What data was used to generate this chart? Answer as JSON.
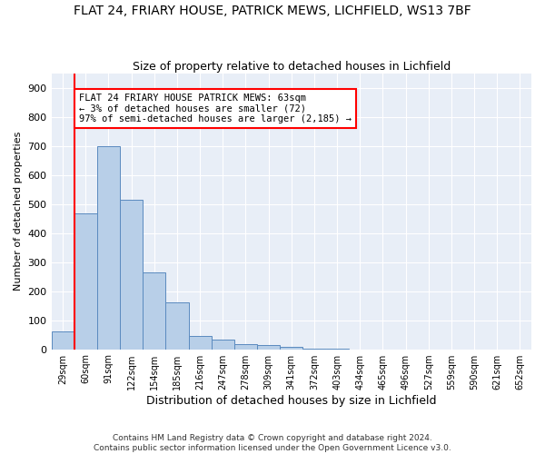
{
  "title": "FLAT 24, FRIARY HOUSE, PATRICK MEWS, LICHFIELD, WS13 7BF",
  "subtitle": "Size of property relative to detached houses in Lichfield",
  "xlabel": "Distribution of detached houses by size in Lichfield",
  "ylabel": "Number of detached properties",
  "bin_labels": [
    "29sqm",
    "60sqm",
    "91sqm",
    "122sqm",
    "154sqm",
    "185sqm",
    "216sqm",
    "247sqm",
    "278sqm",
    "309sqm",
    "341sqm",
    "372sqm",
    "403sqm",
    "434sqm",
    "465sqm",
    "496sqm",
    "527sqm",
    "559sqm",
    "590sqm",
    "621sqm",
    "652sqm"
  ],
  "bar_values": [
    60,
    467,
    700,
    515,
    265,
    160,
    47,
    32,
    17,
    15,
    9,
    3,
    1,
    0,
    0,
    0,
    0,
    0,
    0,
    0,
    0
  ],
  "bar_color": "#b8cfe8",
  "bar_edge_color": "#5a8abf",
  "vline_color": "red",
  "vline_x_index": 1,
  "annotation_text": "FLAT 24 FRIARY HOUSE PATRICK MEWS: 63sqm\n← 3% of detached houses are smaller (72)\n97% of semi-detached houses are larger (2,185) →",
  "annotation_box_color": "white",
  "annotation_box_edge_color": "red",
  "ylim": [
    0,
    950
  ],
  "yticks": [
    0,
    100,
    200,
    300,
    400,
    500,
    600,
    700,
    800,
    900
  ],
  "background_color": "#e8eef7",
  "footer1": "Contains HM Land Registry data © Crown copyright and database right 2024.",
  "footer2": "Contains public sector information licensed under the Open Government Licence v3.0.",
  "title_fontsize": 10,
  "subtitle_fontsize": 9,
  "xlabel_fontsize": 9,
  "ylabel_fontsize": 8
}
